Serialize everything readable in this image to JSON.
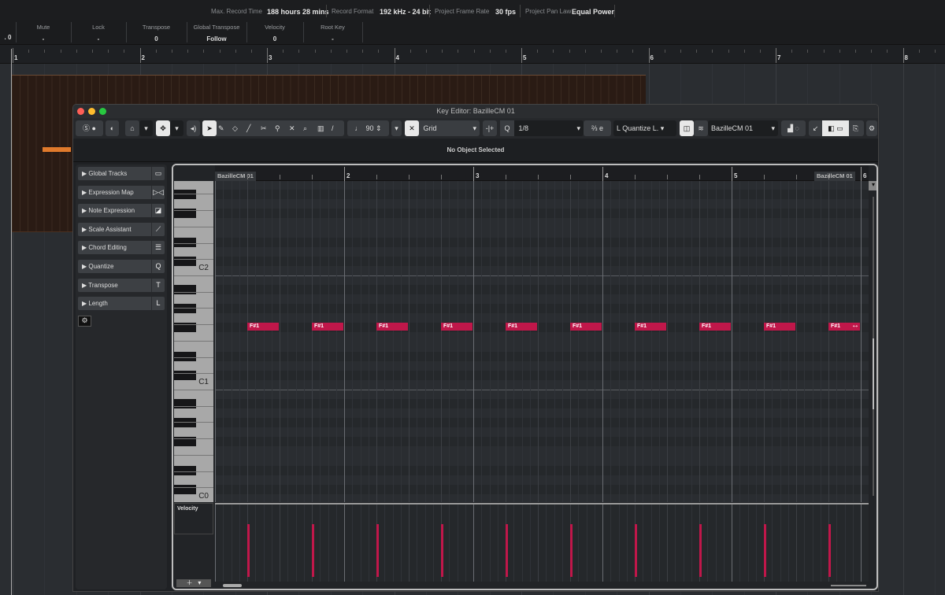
{
  "status_bar": {
    "max_record_time_label": "Max. Record Time",
    "max_record_time": "188 hours 28 mins",
    "record_format_label": "Record Format",
    "record_format": "192 kHz - 24 bit",
    "frame_rate_label": "Project Frame Rate",
    "frame_rate": "30 fps",
    "pan_law_label": "Project Pan Law",
    "pan_law": "Equal Power"
  },
  "inspector": {
    "first_value": ". 0",
    "columns": [
      {
        "label": "Mute",
        "value": "-"
      },
      {
        "label": "Lock",
        "value": "-"
      },
      {
        "label": "Transpose",
        "value": "0"
      },
      {
        "label": "Global Transpose",
        "value": "Follow"
      },
      {
        "label": "Velocity",
        "value": "0"
      },
      {
        "label": "Root Key",
        "value": "-"
      }
    ]
  },
  "project_ruler": {
    "bars": [
      "1",
      "2",
      "3",
      "4",
      "5",
      "6",
      "7",
      "8"
    ]
  },
  "key_editor": {
    "title": "Key Editor: BazilleCM 01",
    "toolbar": {
      "insert_velocity": "90",
      "snap_type": "Grid",
      "quantize": "1/8",
      "note_length": "Quantize L.",
      "part_name": "BazilleCM 01"
    },
    "info_line": "No Object Selected",
    "left_zone": [
      {
        "label": "Global Tracks",
        "icon": "▭"
      },
      {
        "label": "Expression Map",
        "icon": "▷◁"
      },
      {
        "label": "Note Expression",
        "icon": "◪"
      },
      {
        "label": "Scale Assistant",
        "icon": "⟋"
      },
      {
        "label": "Chord Editing",
        "icon": "☰"
      },
      {
        "label": "Quantize",
        "icon": "Q"
      },
      {
        "label": "Transpose",
        "icon": "T"
      },
      {
        "label": "Length",
        "icon": "L"
      }
    ],
    "ruler": {
      "bars": [
        "2",
        "3",
        "4",
        "5",
        "6"
      ],
      "part_label_start": "BazilleCM 01",
      "part_label_end": "BazilleCM 01"
    },
    "keyboard_labels": [
      "C2",
      "C1",
      "C0"
    ],
    "velocity_lane_label": "Velocity",
    "notes": [
      {
        "pitch": "F#1",
        "bar": 1,
        "beat": 2,
        "length": "1/4",
        "velocity": 90
      },
      {
        "pitch": "F#1",
        "bar": 1,
        "beat": 4,
        "length": "1/4",
        "velocity": 90
      },
      {
        "pitch": "F#1",
        "bar": 2,
        "beat": 2,
        "length": "1/4",
        "velocity": 90
      },
      {
        "pitch": "F#1",
        "bar": 2,
        "beat": 4,
        "length": "1/4",
        "velocity": 90
      },
      {
        "pitch": "F#1",
        "bar": 3,
        "beat": 2,
        "length": "1/4",
        "velocity": 90
      },
      {
        "pitch": "F#1",
        "bar": 3,
        "beat": 4,
        "length": "1/4",
        "velocity": 90
      },
      {
        "pitch": "F#1",
        "bar": 4,
        "beat": 2,
        "length": "1/4",
        "velocity": 90
      },
      {
        "pitch": "F#1",
        "bar": 4,
        "beat": 4,
        "length": "1/4",
        "velocity": 90
      },
      {
        "pitch": "F#1",
        "bar": 5,
        "beat": 2,
        "length": "1/4",
        "velocity": 90
      },
      {
        "pitch": "F#1",
        "bar": 5,
        "beat": 4,
        "length": "1/4",
        "velocity": 90
      }
    ],
    "note_color": "#c0174a"
  }
}
